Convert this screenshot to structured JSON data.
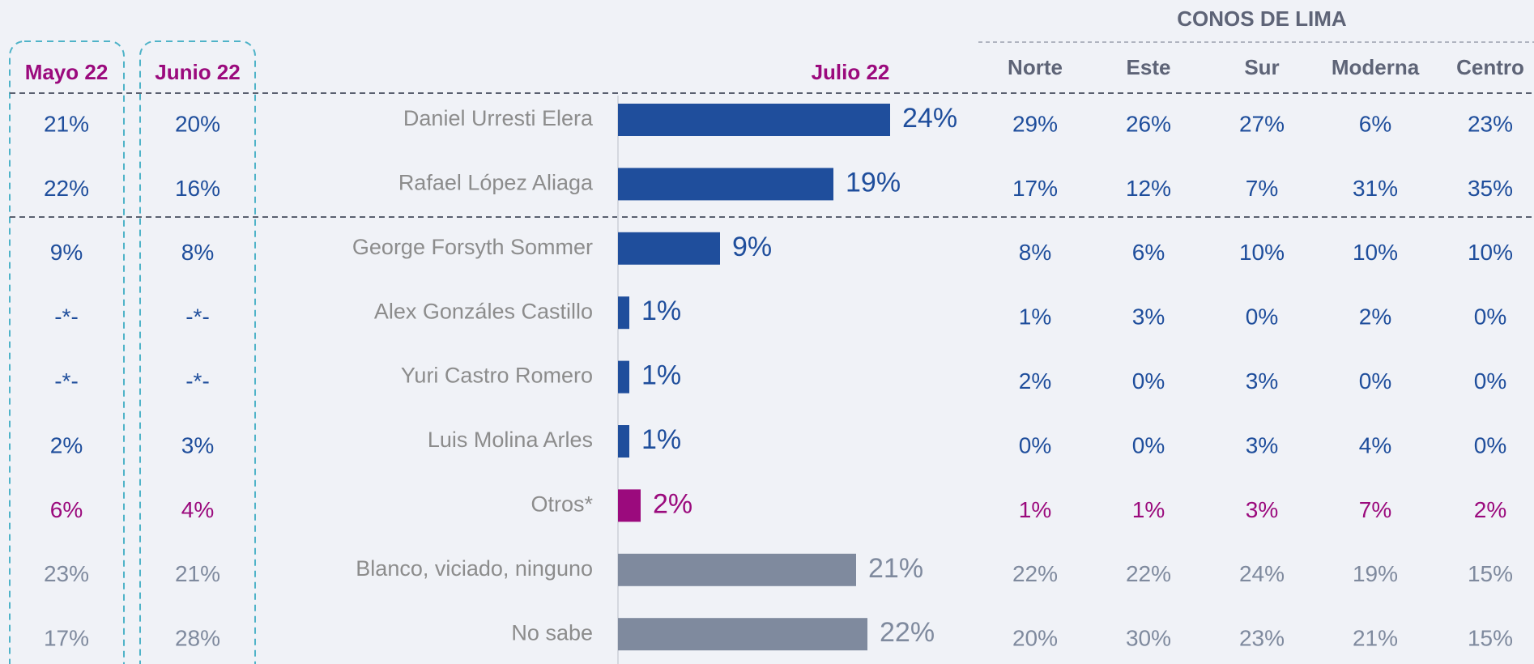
{
  "chart_data": {
    "type": "bar",
    "orientation": "horizontal",
    "title": "Julio 22",
    "categories": [
      "Daniel Urresti Elera",
      "Rafael López Aliaga",
      "George Forsyth Sommer",
      "Alex Gonzáles Castillo",
      "Yuri Castro Romero",
      "Luis Molina Arles",
      "Otros*",
      "Blanco, viciado, ninguno",
      "No sabe"
    ],
    "values": [
      24,
      19,
      9,
      1,
      1,
      1,
      2,
      21,
      22
    ],
    "value_labels": [
      "24%",
      "19%",
      "9%",
      "1%",
      "1%",
      "1%",
      "2%",
      "21%",
      "22%"
    ],
    "colors": [
      "#1f4e9c",
      "#1f4e9c",
      "#1f4e9c",
      "#1f4e9c",
      "#1f4e9c",
      "#1f4e9c",
      "#9b0a7d",
      "#7f8a9e",
      "#7f8a9e"
    ]
  },
  "history": {
    "columns": [
      {
        "header": "Mayo 22",
        "values": [
          "21%",
          "22%",
          "9%",
          "-*-",
          "-*-",
          "2%",
          "6%",
          "23%",
          "17%"
        ]
      },
      {
        "header": "Junio 22",
        "values": [
          "20%",
          "16%",
          "8%",
          "-*-",
          "-*-",
          "3%",
          "4%",
          "21%",
          "28%"
        ]
      }
    ]
  },
  "conos": {
    "title": "CONOS DE LIMA",
    "columns": [
      {
        "header": "Norte",
        "values": [
          "29%",
          "17%",
          "8%",
          "1%",
          "2%",
          "0%",
          "1%",
          "22%",
          "20%"
        ]
      },
      {
        "header": "Este",
        "values": [
          "26%",
          "12%",
          "6%",
          "3%",
          "0%",
          "0%",
          "1%",
          "22%",
          "30%"
        ]
      },
      {
        "header": "Sur",
        "values": [
          "27%",
          "7%",
          "10%",
          "0%",
          "3%",
          "3%",
          "3%",
          "24%",
          "23%"
        ]
      },
      {
        "header": "Moderna",
        "values": [
          "6%",
          "31%",
          "10%",
          "2%",
          "0%",
          "4%",
          "7%",
          "19%",
          "21%"
        ]
      },
      {
        "header": "Centro",
        "values": [
          "23%",
          "35%",
          "10%",
          "0%",
          "0%",
          "0%",
          "2%",
          "15%",
          "15%"
        ]
      }
    ]
  }
}
